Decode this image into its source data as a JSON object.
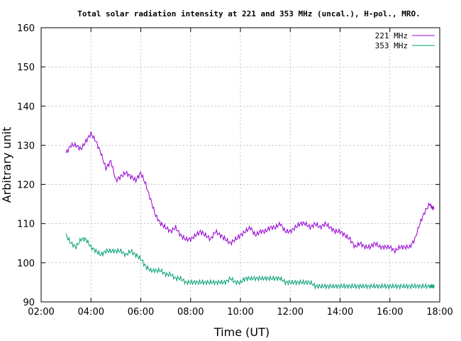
{
  "chart_data": {
    "type": "line",
    "title": "Total solar radiation intensity at 221 and 353 MHz (uncal.), H-pol., MRO.",
    "xlabel": "Time (UT)",
    "ylabel": "Arbitrary unit",
    "xlim": [
      2.0,
      18.0
    ],
    "ylim": [
      90,
      160
    ],
    "xticks": [
      2,
      4,
      6,
      8,
      10,
      12,
      14,
      16,
      18
    ],
    "xtick_labels": [
      "02:00",
      "04:00",
      "06:00",
      "08:00",
      "10:00",
      "12:00",
      "14:00",
      "16:00",
      "18:00"
    ],
    "yticks": [
      90,
      100,
      110,
      120,
      130,
      140,
      150,
      160
    ],
    "ytick_labels": [
      "90",
      "100",
      "110",
      "120",
      "130",
      "140",
      "150",
      "160"
    ],
    "grid": true,
    "legend_position": "top-right",
    "series": [
      {
        "name": "221 MHz",
        "color": "#9400d3",
        "x": [
          3.0,
          3.2,
          3.4,
          3.6,
          3.8,
          4.0,
          4.2,
          4.4,
          4.6,
          4.8,
          5.0,
          5.2,
          5.4,
          5.6,
          5.8,
          6.0,
          6.2,
          6.4,
          6.6,
          6.8,
          7.0,
          7.2,
          7.4,
          7.6,
          7.8,
          8.0,
          8.2,
          8.4,
          8.6,
          8.8,
          9.0,
          9.2,
          9.4,
          9.6,
          9.8,
          10.0,
          10.2,
          10.4,
          10.6,
          10.8,
          11.0,
          11.2,
          11.4,
          11.6,
          11.8,
          12.0,
          12.2,
          12.4,
          12.6,
          12.8,
          13.0,
          13.2,
          13.4,
          13.6,
          13.8,
          14.0,
          14.2,
          14.4,
          14.6,
          14.8,
          15.0,
          15.2,
          15.4,
          15.6,
          15.8,
          16.0,
          16.2,
          16.4,
          16.6,
          16.8,
          17.0,
          17.2,
          17.4,
          17.6,
          17.7
        ],
        "values": [
          128,
          130,
          130,
          129,
          131,
          133,
          131,
          128,
          124,
          126,
          121,
          122,
          123,
          122,
          121,
          123,
          120,
          116,
          112,
          110,
          109,
          108,
          109,
          107,
          106,
          106,
          107,
          108,
          107,
          106,
          108,
          107,
          106,
          105,
          106,
          107,
          108,
          109,
          107,
          108,
          108,
          109,
          109,
          110,
          108,
          108,
          109,
          110,
          110,
          109,
          110,
          109,
          110,
          109,
          108,
          108,
          107,
          106,
          104,
          105,
          104,
          104,
          105,
          104,
          104,
          104,
          103,
          104,
          104,
          104,
          106,
          110,
          113,
          115,
          114
        ]
      },
      {
        "name": "353 MHz",
        "color": "#009e73",
        "x": [
          3.0,
          3.2,
          3.4,
          3.6,
          3.8,
          4.0,
          4.2,
          4.4,
          4.6,
          4.8,
          5.0,
          5.2,
          5.4,
          5.6,
          5.8,
          6.0,
          6.2,
          6.4,
          6.6,
          6.8,
          7.0,
          7.2,
          7.4,
          7.6,
          7.8,
          8.0,
          8.2,
          8.4,
          8.6,
          8.8,
          9.0,
          9.2,
          9.4,
          9.6,
          9.8,
          10.0,
          10.2,
          10.4,
          10.6,
          10.8,
          11.0,
          11.2,
          11.4,
          11.6,
          11.8,
          12.0,
          12.2,
          12.4,
          12.6,
          12.8,
          13.0,
          13.2,
          13.4,
          13.6,
          13.8,
          14.0,
          14.2,
          14.4,
          14.6,
          14.8,
          15.0,
          15.2,
          15.4,
          15.6,
          15.8,
          16.0,
          16.2,
          16.4,
          16.6,
          16.8,
          17.0,
          17.2,
          17.4,
          17.6,
          17.7
        ],
        "values": [
          107,
          105,
          104,
          106,
          106,
          104,
          103,
          102,
          103,
          103,
          103,
          103,
          102,
          103,
          102,
          101,
          99,
          98,
          98,
          98,
          97,
          97,
          96,
          96,
          95,
          95,
          95,
          95,
          95,
          95,
          95,
          95,
          95,
          96,
          95,
          95,
          96,
          96,
          96,
          96,
          96,
          96,
          96,
          96,
          95,
          95,
          95,
          95,
          95,
          95,
          94,
          94,
          94,
          94,
          94,
          94,
          94,
          94,
          94,
          94,
          94,
          94,
          94,
          94,
          94,
          94,
          94,
          94,
          94,
          94,
          94,
          94,
          94,
          94,
          94
        ]
      }
    ]
  }
}
